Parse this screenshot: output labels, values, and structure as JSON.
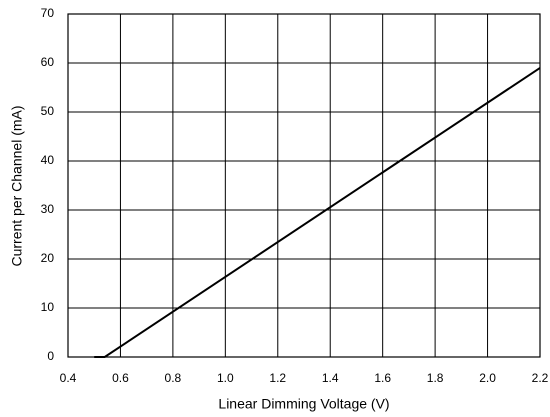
{
  "chart_data": {
    "type": "line",
    "xlabel": "Linear Dimming Voltage (V)",
    "ylabel": "Current per Channel (mA)",
    "series": [
      {
        "color": "#000000",
        "x": [
          0.5,
          0.54,
          2.2
        ],
        "values": [
          0,
          0,
          59
        ]
      }
    ],
    "xlim": [
      0.4,
      2.2
    ],
    "xticks": [
      0.4,
      0.6,
      0.8,
      {
        "value": 1,
        "label": "1.0"
      },
      1.2,
      1.4,
      1.6,
      1.8,
      {
        "value": 2,
        "label": "2.0"
      },
      2.2
    ],
    "ylim": [
      0,
      70
    ],
    "yticks": [
      0,
      10,
      20,
      30,
      40,
      50,
      60,
      70
    ],
    "grid": true
  }
}
